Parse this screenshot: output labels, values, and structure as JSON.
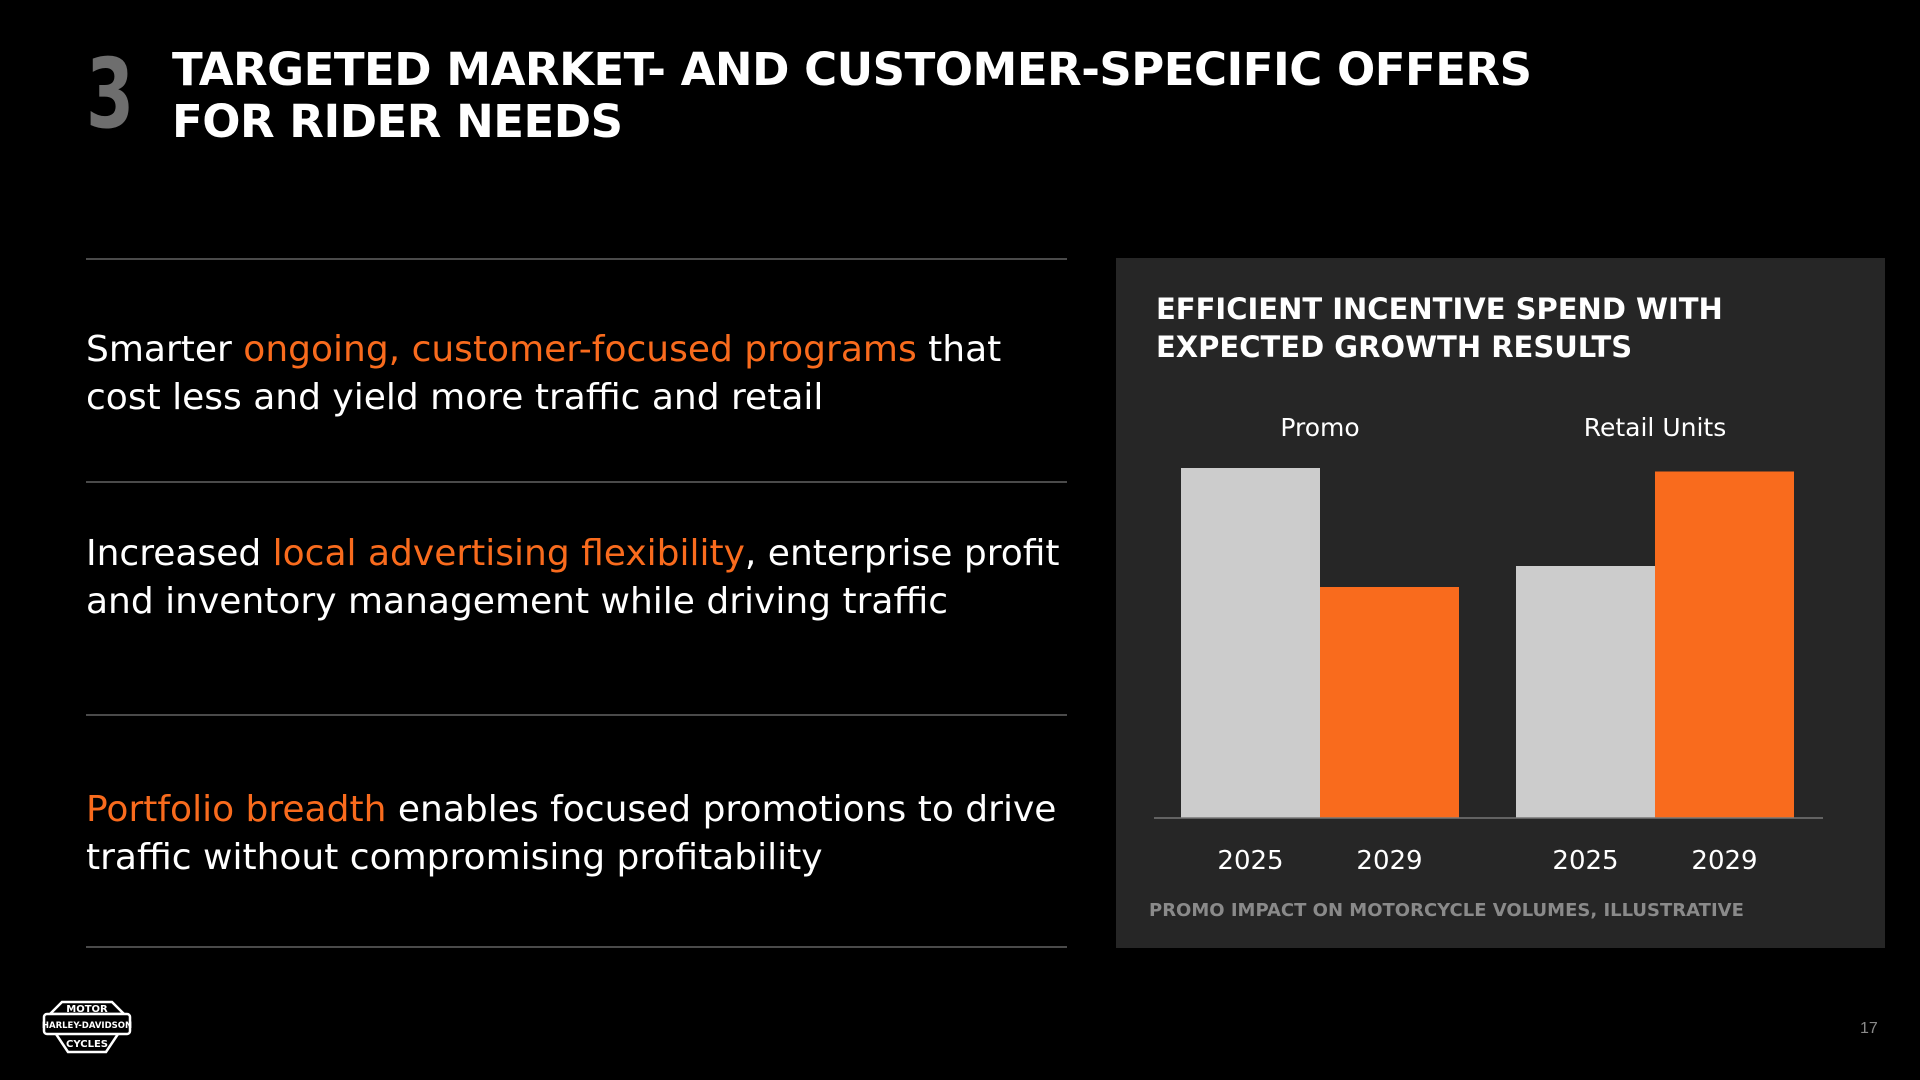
{
  "slide": {
    "number": "3",
    "title": "Targeted market- and customer-specific offers for rider needs",
    "page_number": "17"
  },
  "points": [
    {
      "pre": "Smarter ",
      "highlight": "ongoing, customer-focused programs",
      "post": " that cost less and yield more traffic and retail"
    },
    {
      "pre": "Increased ",
      "highlight": "local advertising flexibility",
      "post": ", enterprise profit and inventory management while driving traffic"
    },
    {
      "pre": "",
      "highlight": "Portfolio breadth",
      "post": " enables focused promotions to drive traffic without compromising profitability"
    }
  ],
  "panel": {
    "title": "Efficient incentive spend with expected growth results",
    "footnote": "Promo impact on motorcycle volumes, illustrative"
  },
  "logo": {
    "top": "MOTOR",
    "middle": "HARLEY-DAVIDSON",
    "bottom": "CYCLES"
  },
  "colors": {
    "accent": "#f96b1d",
    "bar_2025": "#cccccc",
    "bar_2029": "#f96b1d",
    "panel_bg": "#262626"
  },
  "chart_data": {
    "type": "bar",
    "title": "Efficient incentive spend with expected growth results",
    "groups": [
      {
        "name": "Promo",
        "categories": [
          "2025",
          "2029"
        ],
        "values": [
          100,
          66
        ]
      },
      {
        "name": "Retail Units",
        "categories": [
          "2025",
          "2029"
        ],
        "values": [
          72,
          99
        ]
      }
    ],
    "ylim": [
      0,
      100
    ],
    "grid": false,
    "note": "Promo impact on motorcycle volumes, illustrative"
  }
}
